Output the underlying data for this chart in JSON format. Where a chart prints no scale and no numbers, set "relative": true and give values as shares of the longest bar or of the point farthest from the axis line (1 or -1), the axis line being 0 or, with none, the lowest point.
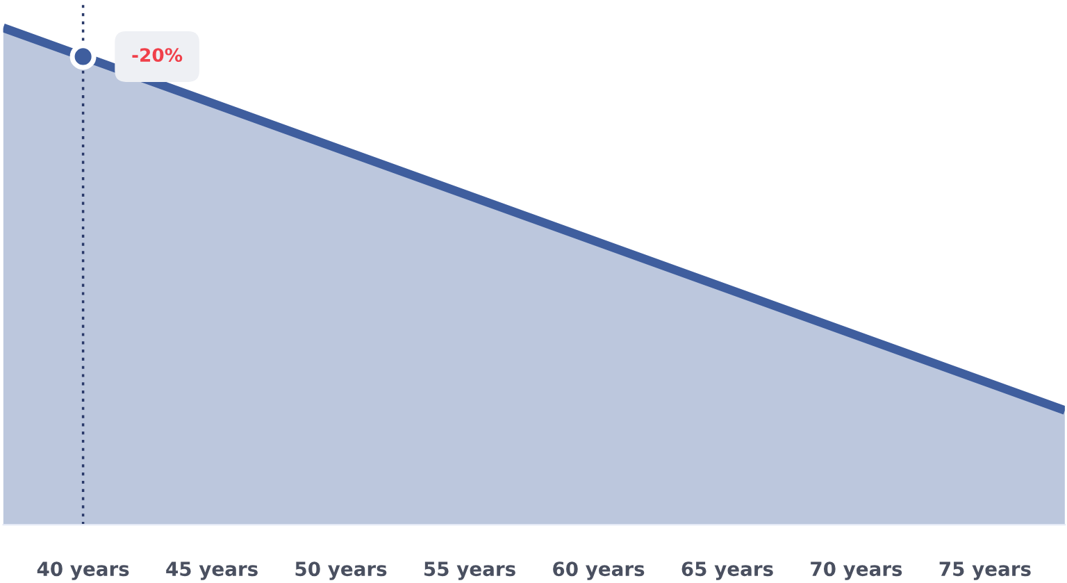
{
  "chart_data": {
    "type": "area",
    "relative": true,
    "x": [
      36.9,
      40,
      78.1
    ],
    "series": [
      {
        "color": "#3f5e9e",
        "values": [
          1,
          0.942,
          0.23
        ]
      }
    ],
    "xlim": [
      36.9,
      78.1
    ],
    "xticks": [
      {
        "value": 40,
        "label": "40 years"
      },
      {
        "value": 45,
        "label": "45 years"
      },
      {
        "value": 50,
        "label": "50 years"
      },
      {
        "value": 55,
        "label": "55 years"
      },
      {
        "value": 60,
        "label": "60 years"
      },
      {
        "value": 65,
        "label": "65 years"
      },
      {
        "value": 70,
        "label": "70 years"
      },
      {
        "value": 75,
        "label": "75 years"
      }
    ],
    "ref_lines": [
      {
        "axis": "x",
        "value": 40,
        "color": "#2a3a6a",
        "line_style": "dotted"
      }
    ],
    "annotations": [
      {
        "text": "-20%",
        "x": 40,
        "y": 0.942
      }
    ],
    "grid": false,
    "legend": false
  }
}
